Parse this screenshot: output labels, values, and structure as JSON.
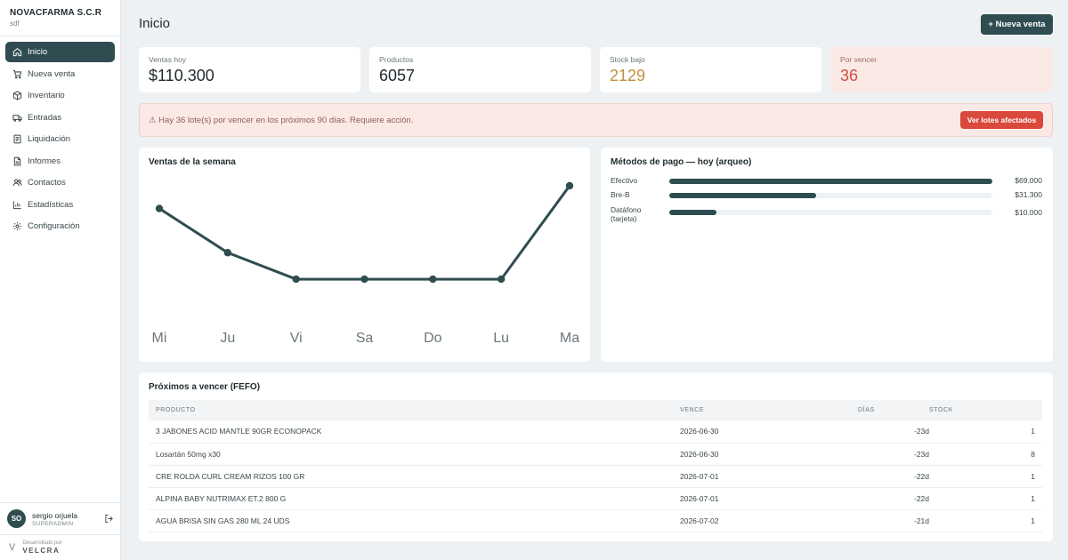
{
  "brand": {
    "name": "NOVACFARMA S.C.R",
    "sub": "sdf"
  },
  "nav": [
    {
      "label": "Inicio",
      "icon": "home-icon",
      "active": true
    },
    {
      "label": "Nueva venta",
      "icon": "cart-icon"
    },
    {
      "label": "Inventario",
      "icon": "box-icon"
    },
    {
      "label": "Entradas",
      "icon": "truck-icon"
    },
    {
      "label": "Liquidación",
      "icon": "document-icon"
    },
    {
      "label": "Informes",
      "icon": "report-icon"
    },
    {
      "label": "Contactos",
      "icon": "users-icon"
    },
    {
      "label": "Estadísticas",
      "icon": "bar-chart-icon"
    },
    {
      "label": "Configuración",
      "icon": "gear-icon"
    }
  ],
  "user": {
    "initials": "SO",
    "name": "sergio orjuela",
    "role": "SUPERADMIN"
  },
  "dev": {
    "label": "Desarrollado por",
    "name": "VELCRA"
  },
  "page": {
    "title": "Inicio",
    "new_sale_label": "+ Nueva venta"
  },
  "kpis": [
    {
      "label": "Ventas hoy",
      "value": "$110.300"
    },
    {
      "label": "Productos",
      "value": "6057"
    },
    {
      "label": "Stock bajo",
      "value": "2129"
    },
    {
      "label": "Por vencer",
      "value": "36"
    }
  ],
  "alert": {
    "text": "⚠ Hay 36 lote(s) por vencer en los próximos 90 días. Requiere acción.",
    "button": "Ver lotes afectados"
  },
  "weekly": {
    "title": "Ventas de la semana",
    "chart_data": {
      "type": "line",
      "categories": [
        "Mi",
        "Ju",
        "Vi",
        "Sa",
        "Do",
        "Lu",
        "Ma"
      ],
      "series": [
        {
          "values": [
            0.82,
            0.47,
            0.26,
            0.26,
            0.26,
            0.26,
            1.0
          ]
        }
      ],
      "grid": false,
      "color": "#2f4d50"
    }
  },
  "payments": {
    "title": "Métodos de pago — hoy (arqueo)",
    "methods": [
      {
        "label": "Efectivo",
        "amount": "$69.000",
        "fraction": 1.0
      },
      {
        "label": "Bre-B",
        "amount": "$31.300",
        "fraction": 0.454
      },
      {
        "label": "Datáfono (tarjeta)",
        "amount": "$10.000",
        "fraction": 0.145
      }
    ]
  },
  "fefo": {
    "title": "Próximos a vencer (FEFO)",
    "headers": [
      "PRODUCTO",
      "VENCE",
      "DÍAS",
      "STOCK"
    ],
    "rows": [
      {
        "product": "3 JABONES ACID MANTLE 90GR ECONOPACK",
        "expires": "2026-06-30",
        "days": "-23d",
        "stock": "1"
      },
      {
        "product": "Losartán 50mg x30",
        "expires": "2026-06-30",
        "days": "-23d",
        "stock": "8"
      },
      {
        "product": "CRE ROLDA CURL CREAM RIZOS 100 GR",
        "expires": "2026-07-01",
        "days": "-22d",
        "stock": "1"
      },
      {
        "product": "ALPINA BABY NUTRIMAX ET.2 800 G",
        "expires": "2026-07-01",
        "days": "-22d",
        "stock": "1"
      },
      {
        "product": "AGUA BRISA SIN GAS 280 ML 24 UDS",
        "expires": "2026-07-02",
        "days": "-21d",
        "stock": "1"
      }
    ]
  }
}
